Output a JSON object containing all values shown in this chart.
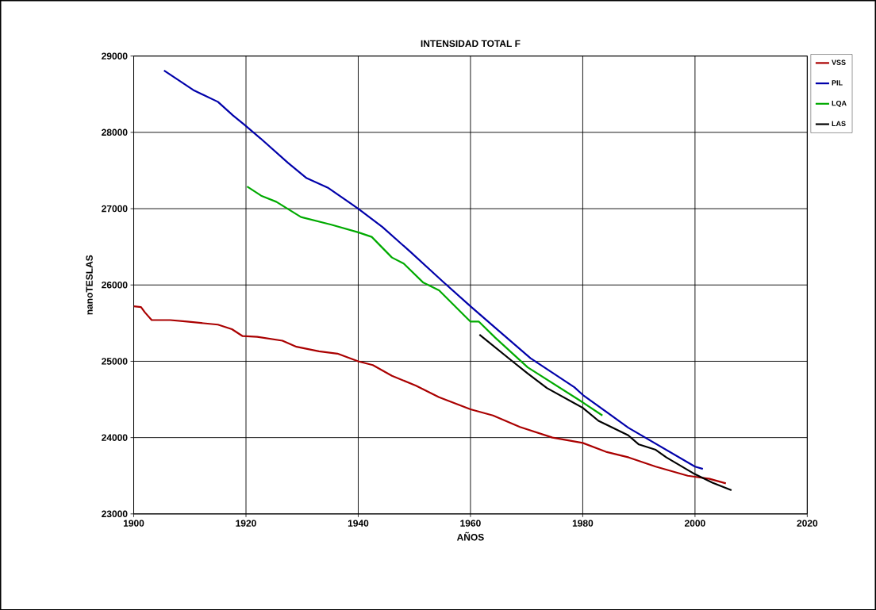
{
  "chart_data": {
    "type": "line",
    "title": "INTENSIDAD TOTAL F",
    "xlabel": "AÑOS",
    "ylabel": "nanoTESLAS",
    "xlim": [
      1900,
      2020
    ],
    "ylim": [
      23000,
      29000
    ],
    "xticks": [
      1900,
      1920,
      1940,
      1960,
      1980,
      2000,
      2020
    ],
    "yticks": [
      23000,
      24000,
      25000,
      26000,
      27000,
      28000,
      29000
    ],
    "grid": true,
    "legend": "top right",
    "marker": "none",
    "line_style": "solid",
    "series": [
      {
        "name": "VSS",
        "color": "#aa0000",
        "x": [
          1900,
          1901.3,
          1902,
          1903.2,
          1904.3,
          1906.5,
          1909.5,
          1915,
          1917.5,
          1919.4,
          1922,
          1926.5,
          1929,
          1933,
          1936.3,
          1940,
          1942.6,
          1946,
          1950.3,
          1954.4,
          1960,
          1964,
          1968.8,
          1974.6,
          1980,
          1984.3,
          1988.2,
          1993,
          1998.7,
          2002.6,
          2005.5
        ],
        "values": [
          25720,
          25710,
          25640,
          25540,
          25540,
          25540,
          25520,
          25480,
          25420,
          25330,
          25320,
          25270,
          25190,
          25130,
          25100,
          25000,
          24950,
          24810,
          24680,
          24530,
          24370,
          24290,
          24140,
          24000,
          23930,
          23810,
          23740,
          23620,
          23500,
          23460,
          23400
        ]
      },
      {
        "name": "PIL",
        "color": "#0000aa",
        "x": [
          1905.4,
          1910.6,
          1915,
          1917.7,
          1919.7,
          1922.6,
          1927.5,
          1930.8,
          1934.7,
          1940,
          1944.3,
          1949.2,
          1955,
          1960,
          1964.4,
          1970.7,
          1978.5,
          1980,
          1988.1,
          2000,
          2001.4
        ],
        "values": [
          28810,
          28555,
          28400,
          28220,
          28100,
          27920,
          27600,
          27400,
          27270,
          27000,
          26760,
          26440,
          26050,
          25720,
          25440,
          25040,
          24660,
          24560,
          24130,
          23620,
          23590
        ]
      },
      {
        "name": "LQA",
        "color": "#00aa00",
        "x": [
          1920.2,
          1922.7,
          1925.4,
          1929.8,
          1935.2,
          1940,
          1942.4,
          1946,
          1948.1,
          1951.6,
          1954.4,
          1960,
          1961.5,
          1964.4,
          1970.2,
          1979.4,
          1983.5
        ],
        "values": [
          27290,
          27170,
          27090,
          26890,
          26790,
          26690,
          26630,
          26360,
          26280,
          26030,
          25930,
          25520,
          25520,
          25310,
          24920,
          24490,
          24290
        ]
      },
      {
        "name": "LAS",
        "color": "#000000",
        "x": [
          1961.6,
          1967.3,
          1970.2,
          1973.6,
          1980,
          1982.8,
          1988.1,
          1990,
          1993,
          1994.9,
          2000,
          2003.1,
          2006.5
        ],
        "values": [
          25350,
          25010,
          24840,
          24650,
          24390,
          24220,
          24030,
          23910,
          23840,
          23740,
          23520,
          23410,
          23310
        ]
      }
    ]
  }
}
